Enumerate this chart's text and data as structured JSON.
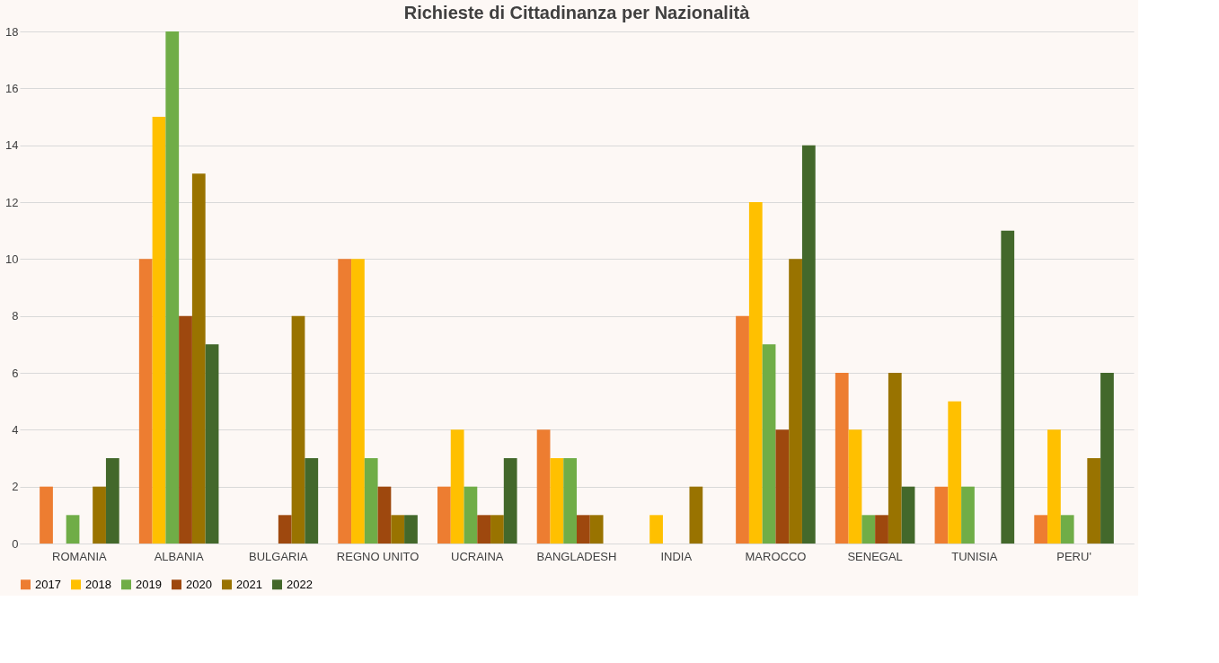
{
  "chart_data": {
    "type": "bar",
    "title": "Richieste di Cittadinanza per Nazionalità",
    "categories": [
      "ROMANIA",
      "ALBANIA",
      "BULGARIA",
      "REGNO UNITO",
      "UCRAINA",
      "BANGLADESH",
      "INDIA",
      "MAROCCO",
      "SENEGAL",
      "TUNISIA",
      "PERU'"
    ],
    "series": [
      {
        "name": "2017",
        "color": "#ed7d31",
        "values": [
          2,
          10,
          0,
          10,
          2,
          4,
          0,
          8,
          6,
          2,
          1
        ]
      },
      {
        "name": "2018",
        "color": "#ffc000",
        "values": [
          0,
          15,
          0,
          10,
          4,
          3,
          1,
          12,
          4,
          5,
          4
        ]
      },
      {
        "name": "2019",
        "color": "#70ad47",
        "values": [
          1,
          18,
          0,
          3,
          2,
          3,
          0,
          7,
          1,
          2,
          1
        ]
      },
      {
        "name": "2020",
        "color": "#9e480e",
        "values": [
          0,
          8,
          1,
          2,
          1,
          1,
          0,
          4,
          1,
          0,
          0
        ]
      },
      {
        "name": "2021",
        "color": "#997300",
        "values": [
          2,
          13,
          8,
          1,
          1,
          1,
          2,
          10,
          6,
          0,
          3
        ]
      },
      {
        "name": "2022",
        "color": "#43682b",
        "values": [
          3,
          7,
          3,
          1,
          3,
          0,
          0,
          14,
          2,
          11,
          6
        ]
      }
    ],
    "ylim": [
      0,
      18
    ],
    "yticks": [
      0,
      2,
      4,
      6,
      8,
      10,
      12,
      14,
      16,
      18
    ],
    "grid": "y",
    "legend": "bottom"
  }
}
